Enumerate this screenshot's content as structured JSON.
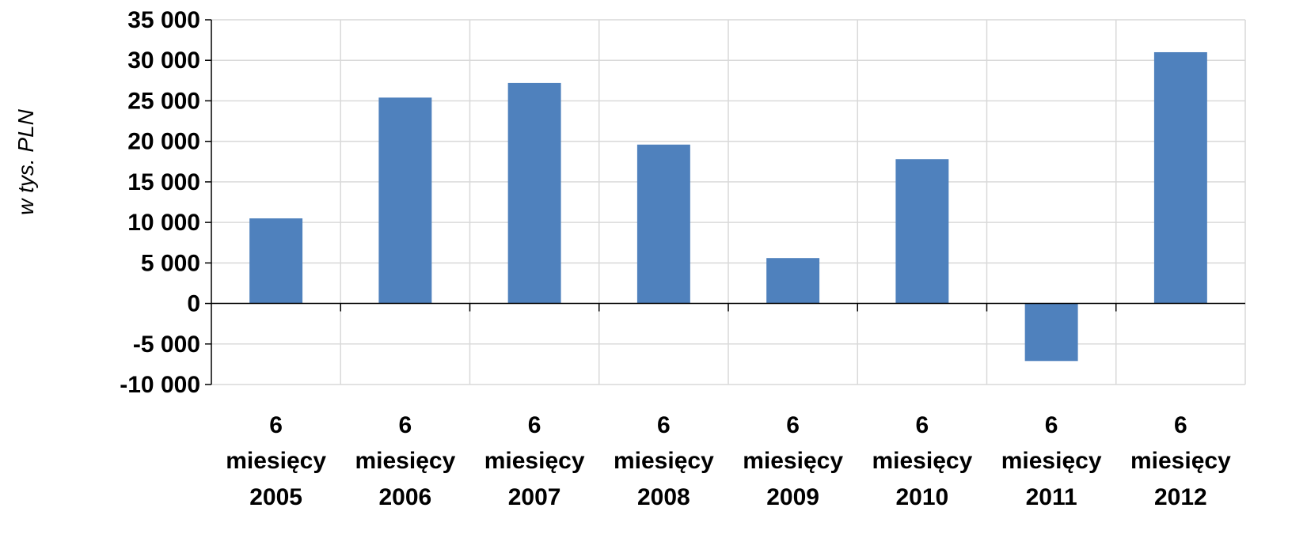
{
  "chart_data": {
    "type": "bar",
    "ylabel": "w tys. PLN",
    "xlabel": "",
    "title": "",
    "categories": [
      [
        "6",
        "miesięcy",
        "2005"
      ],
      [
        "6",
        "miesięcy",
        "2006"
      ],
      [
        "6",
        "miesięcy",
        "2007"
      ],
      [
        "6",
        "miesięcy",
        "2008"
      ],
      [
        "6",
        "miesięcy",
        "2009"
      ],
      [
        "6",
        "miesięcy",
        "2010"
      ],
      [
        "6",
        "miesięcy",
        "2011"
      ],
      [
        "6",
        "miesięcy",
        "2012"
      ]
    ],
    "values": [
      10500,
      25400,
      27200,
      19600,
      5600,
      17800,
      -7100,
      31000
    ],
    "ylim": [
      -10000,
      35000
    ],
    "yticks": [
      35000,
      30000,
      25000,
      20000,
      15000,
      10000,
      5000,
      0,
      -5000,
      -10000
    ],
    "ytick_labels": [
      "35 000",
      "30 000",
      "25 000",
      "20 000",
      "15 000",
      "10 000",
      "5 000",
      "0",
      "-5 000",
      "-10 000"
    ],
    "grid": true,
    "legend": "none",
    "colors": {
      "bar": "#4F81BD",
      "grid": "#D9D9D9",
      "axis": "#000000"
    }
  }
}
